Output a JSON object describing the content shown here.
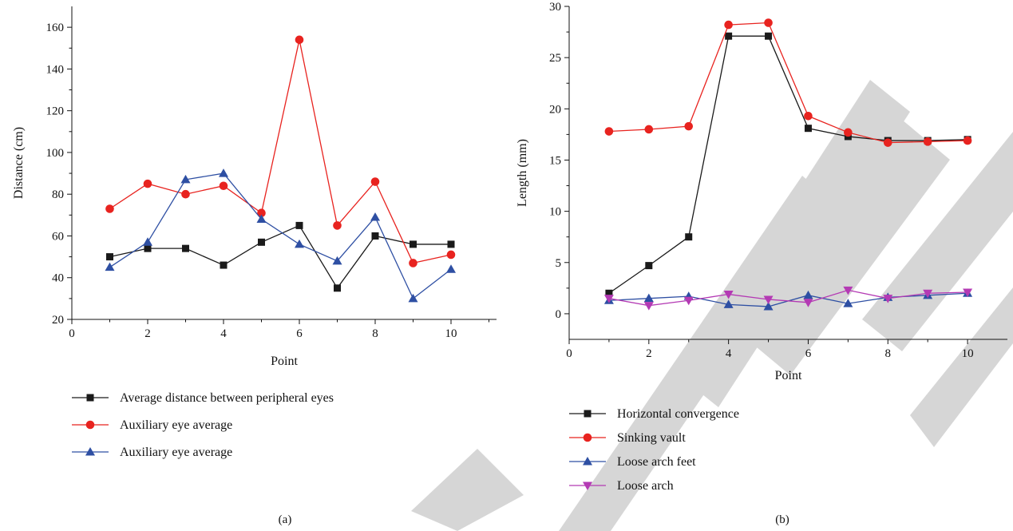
{
  "chart_data": [
    {
      "type": "line",
      "caption": "(a)",
      "xlabel": "Point",
      "ylabel": "Distance (cm)",
      "xlim": [
        0,
        11.2
      ],
      "ylim": [
        20,
        170
      ],
      "xticks": [
        0,
        2,
        4,
        6,
        8,
        10
      ],
      "yticks": [
        20,
        40,
        60,
        80,
        100,
        120,
        140,
        160
      ],
      "legend_position": "below",
      "x": [
        1,
        2,
        3,
        4,
        5,
        6,
        7,
        8,
        9,
        10
      ],
      "series": [
        {
          "name": "Average distance between peripheral eyes",
          "color": "#1a1a1a",
          "marker": "square",
          "values": [
            50,
            54,
            54,
            46,
            57,
            65,
            35,
            60,
            56,
            56
          ]
        },
        {
          "name": "Auxiliary eye average",
          "color": "#e8231f",
          "marker": "circle",
          "values": [
            73,
            85,
            80,
            84,
            71,
            154,
            65,
            86,
            47,
            51
          ]
        },
        {
          "name": "Auxiliary eye average",
          "color": "#2e4fa3",
          "marker": "triangle-up",
          "values": [
            45,
            57,
            87,
            90,
            68,
            56,
            48,
            69,
            30,
            44
          ]
        }
      ]
    },
    {
      "type": "line",
      "caption": "(b)",
      "xlabel": "Point",
      "ylabel": "Length (mm)",
      "xlim": [
        0,
        11
      ],
      "ylim": [
        -2.5,
        30
      ],
      "xticks": [
        0,
        2,
        4,
        6,
        8,
        10
      ],
      "yticks": [
        0,
        5,
        10,
        15,
        20,
        25,
        30
      ],
      "legend_position": "below",
      "x": [
        1,
        2,
        3,
        4,
        5,
        6,
        7,
        8,
        9,
        10
      ],
      "series": [
        {
          "name": "Horizontal convergence",
          "color": "#1a1a1a",
          "marker": "square",
          "values": [
            2.0,
            4.7,
            7.5,
            27.1,
            27.1,
            18.1,
            17.3,
            16.9,
            16.9,
            17.0
          ]
        },
        {
          "name": "Sinking vault",
          "color": "#e8231f",
          "marker": "circle",
          "values": [
            17.8,
            18.0,
            18.3,
            28.2,
            28.4,
            19.3,
            17.7,
            16.7,
            16.8,
            16.9
          ]
        },
        {
          "name": "Loose arch feet",
          "color": "#2e4fa3",
          "marker": "triangle-up",
          "values": [
            1.3,
            1.5,
            1.7,
            0.9,
            0.7,
            1.8,
            1.0,
            1.6,
            1.8,
            2.0
          ]
        },
        {
          "name": "Loose arch",
          "color": "#b43ab4",
          "marker": "triangle-down",
          "values": [
            1.5,
            0.8,
            1.3,
            1.9,
            1.4,
            1.1,
            2.3,
            1.5,
            2.0,
            2.1
          ]
        }
      ]
    }
  ]
}
